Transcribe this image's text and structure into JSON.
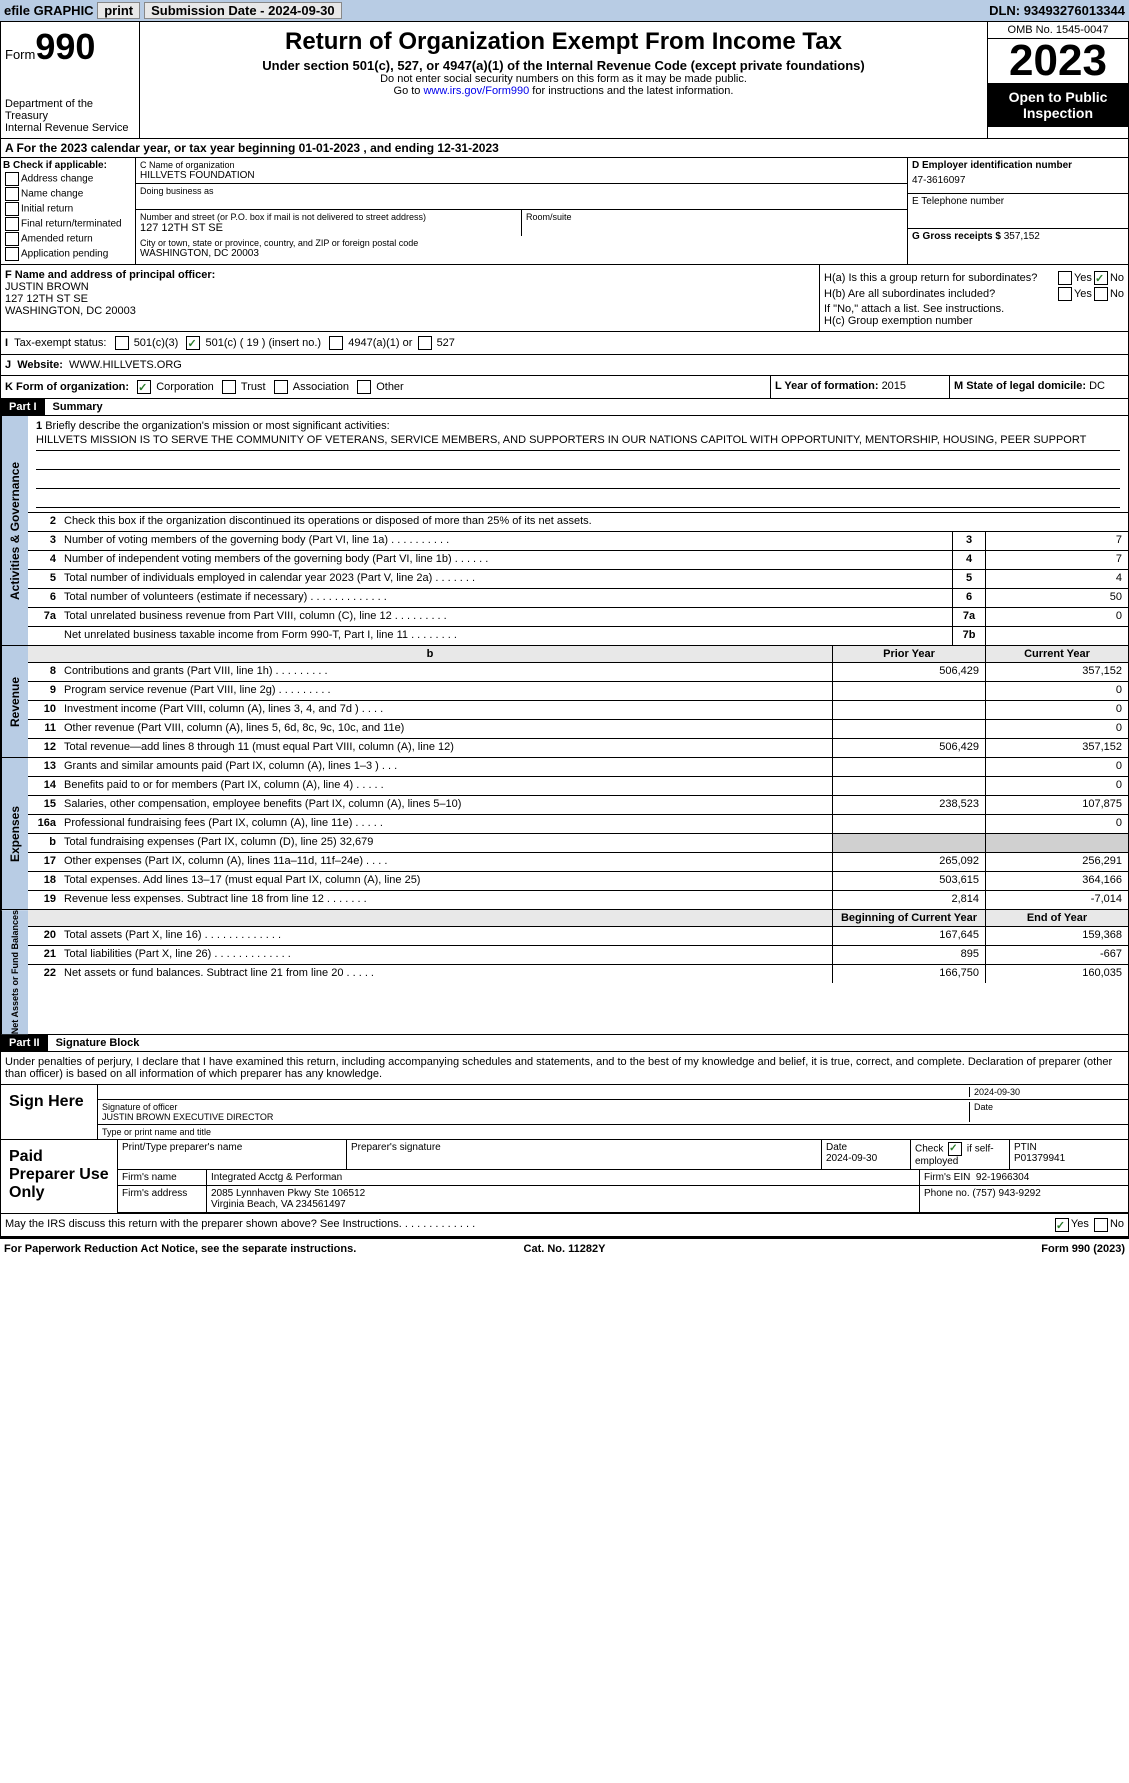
{
  "top": {
    "efile": "efile GRAPHIC",
    "print": "print",
    "subdate_lbl": "Submission Date - ",
    "subdate": "2024-09-30",
    "dln_lbl": "DLN: ",
    "dln": "93493276013344"
  },
  "hdr": {
    "form": "Form",
    "n990": "990",
    "title": "Return of Organization Exempt From Income Tax",
    "sub": "Under section 501(c), 527, or 4947(a)(1) of the Internal Revenue Code (except private foundations)",
    "note1": "Do not enter social security numbers on this form as it may be made public.",
    "note2": "Go to ",
    "link": "www.irs.gov/Form990",
    "note3": " for instructions and the latest information.",
    "dept": "Department of the Treasury",
    "irs": "Internal Revenue Service",
    "omb": "OMB No. 1545-0047",
    "year": "2023",
    "open": "Open to Public Inspection"
  },
  "a": {
    "lbl": "A For the 2023 calendar year, or tax year beginning ",
    "beg": "01-01-2023",
    "mid": " , and ending ",
    "end": "12-31-2023"
  },
  "b": {
    "lbl": "B Check if applicable:",
    "opts": [
      "Address change",
      "Name change",
      "Initial return",
      "Final return/terminated",
      "Amended return",
      "Application pending"
    ]
  },
  "c": {
    "lbl": "C Name of organization",
    "name": "HILLVETS FOUNDATION",
    "dba_lbl": "Doing business as",
    "addr_lbl": "Number and street (or P.O. box if mail is not delivered to street address)",
    "addr": "127 12TH ST SE",
    "room_lbl": "Room/suite",
    "city_lbl": "City or town, state or province, country, and ZIP or foreign postal code",
    "city": "WASHINGTON, DC  20003"
  },
  "d": {
    "lbl": "D Employer identification number",
    "ein": "47-3616097"
  },
  "e": {
    "lbl": "E Telephone number"
  },
  "g": {
    "lbl": "G Gross receipts $ ",
    "val": "357,152"
  },
  "f": {
    "lbl": "F  Name and address of principal officer:",
    "name": "JUSTIN BROWN",
    "addr1": "127 12TH ST SE",
    "addr2": "WASHINGTON, DC  20003"
  },
  "h": {
    "a_lbl": "H(a)  Is this a group return for subordinates?",
    "b_lbl": "H(b)  Are all subordinates included?",
    "note": "If \"No,\" attach a list. See instructions.",
    "c_lbl": "H(c)  Group exemption number",
    "yes": "Yes",
    "no": "No"
  },
  "i": {
    "lbl": "Tax-exempt status:",
    "o1": "501(c)(3)",
    "o2": "501(c) ( 19 ) (insert no.)",
    "o3": "4947(a)(1) or",
    "o4": "527"
  },
  "j": {
    "lbl": "Website:",
    "val": "WWW.HILLVETS.ORG"
  },
  "k": {
    "lbl": "K Form of organization:",
    "o1": "Corporation",
    "o2": "Trust",
    "o3": "Association",
    "o4": "Other"
  },
  "l": {
    "lbl": "L Year of formation: ",
    "val": "2015"
  },
  "m": {
    "lbl": "M State of legal domicile: ",
    "val": "DC"
  },
  "p1": {
    "hdr": "Part I",
    "title": "Summary"
  },
  "mission": {
    "lbl": "Briefly describe the organization's mission or most significant activities:",
    "txt": "HILLVETS MISSION IS TO SERVE THE COMMUNITY OF VETERANS, SERVICE MEMBERS, AND SUPPORTERS IN OUR NATIONS CAPITOL WITH OPPORTUNITY, MENTORSHIP, HOUSING, PEER SUPPORT"
  },
  "l2": "Check this box      if the organization discontinued its operations or disposed of more than 25% of its net assets.",
  "lines_gov": [
    {
      "n": "3",
      "d": "Number of voting members of the governing body (Part VI, line 1a)   .    .    .    .    .    .    .    .    .    .",
      "b": "3",
      "v": "7"
    },
    {
      "n": "4",
      "d": "Number of independent voting members of the governing body (Part VI, line 1b)   .    .    .    .    .    .",
      "b": "4",
      "v": "7"
    },
    {
      "n": "5",
      "d": "Total number of individuals employed in calendar year 2023 (Part V, line 2a)   .    .    .    .    .    .    .",
      "b": "5",
      "v": "4"
    },
    {
      "n": "6",
      "d": "Total number of volunteers (estimate if necessary)    .    .    .    .    .    .    .    .    .    .    .    .    .",
      "b": "6",
      "v": "50"
    },
    {
      "n": "7a",
      "d": "Total unrelated business revenue from Part VIII, column (C), line 12   .    .    .    .    .    .    .    .    .",
      "b": "7a",
      "v": "0"
    },
    {
      "n": "",
      "d": "Net unrelated business taxable income from Form 990-T, Part I, line 11   .    .    .    .    .    .    .    .",
      "b": "7b",
      "v": ""
    }
  ],
  "col_hdr": {
    "py": "Prior Year",
    "cy": "Current Year"
  },
  "lines_rev": [
    {
      "n": "8",
      "d": "Contributions and grants (Part VIII, line 1h)    .    .    .    .    .    .    .    .    .",
      "py": "506,429",
      "cy": "357,152"
    },
    {
      "n": "9",
      "d": "Program service revenue (Part VIII, line 2g)   .    .    .    .    .    .    .    .    .",
      "py": "",
      "cy": "0"
    },
    {
      "n": "10",
      "d": "Investment income (Part VIII, column (A), lines 3, 4, and 7d )    .    .    .    .",
      "py": "",
      "cy": "0"
    },
    {
      "n": "11",
      "d": "Other revenue (Part VIII, column (A), lines 5, 6d, 8c, 9c, 10c, and 11e)",
      "py": "",
      "cy": "0"
    },
    {
      "n": "12",
      "d": "Total revenue—add lines 8 through 11 (must equal Part VIII, column (A), line 12)",
      "py": "506,429",
      "cy": "357,152"
    }
  ],
  "lines_exp": [
    {
      "n": "13",
      "d": "Grants and similar amounts paid (Part IX, column (A), lines 1–3 )   .    .    .",
      "py": "",
      "cy": "0"
    },
    {
      "n": "14",
      "d": "Benefits paid to or for members (Part IX, column (A), line 4)   .    .    .    .    .",
      "py": "",
      "cy": "0"
    },
    {
      "n": "15",
      "d": "Salaries, other compensation, employee benefits (Part IX, column (A), lines 5–10)",
      "py": "238,523",
      "cy": "107,875"
    },
    {
      "n": "16a",
      "d": "Professional fundraising fees (Part IX, column (A), line 11e)    .    .    .    .    .",
      "py": "",
      "cy": "0"
    },
    {
      "n": "b",
      "d": "Total fundraising expenses (Part IX, column (D), line 25) 32,679",
      "py": "SHADE",
      "cy": "SHADE"
    },
    {
      "n": "17",
      "d": "Other expenses (Part IX, column (A), lines 11a–11d, 11f–24e)    .    .    .    .",
      "py": "265,092",
      "cy": "256,291"
    },
    {
      "n": "18",
      "d": "Total expenses. Add lines 13–17 (must equal Part IX, column (A), line 25)",
      "py": "503,615",
      "cy": "364,166"
    },
    {
      "n": "19",
      "d": "Revenue less expenses. Subtract line 18 from line 12   .    .    .    .    .    .    .",
      "py": "2,814",
      "cy": "-7,014"
    }
  ],
  "col_hdr2": {
    "py": "Beginning of Current Year",
    "cy": "End of Year"
  },
  "lines_net": [
    {
      "n": "20",
      "d": "Total assets (Part X, line 16)    .    .    .    .    .    .    .    .    .    .    .    .    .",
      "py": "167,645",
      "cy": "159,368"
    },
    {
      "n": "21",
      "d": "Total liabilities (Part X, line 26)   .    .    .    .    .    .    .    .    .    .    .    .    .",
      "py": "895",
      "cy": "-667"
    },
    {
      "n": "22",
      "d": "Net assets or fund balances. Subtract line 21 from line 20    .    .    .    .    .",
      "py": "166,750",
      "cy": "160,035"
    }
  ],
  "vtabs": {
    "gov": "Activities & Governance",
    "rev": "Revenue",
    "exp": "Expenses",
    "net": "Net Assets or Fund Balances"
  },
  "p2": {
    "hdr": "Part II",
    "title": "Signature Block"
  },
  "sig": {
    "decl": "Under penalties of perjury, I declare that I have examined this return, including accompanying schedules and statements, and to the best of my knowledge and belief, it is true, correct, and complete. Declaration of preparer (other than officer) is based on all information of which preparer has any knowledge.",
    "sign_here": "Sign Here",
    "sig_lbl": "Signature of officer",
    "date_lbl": "Date",
    "date": "2024-09-30",
    "name": "JUSTIN BROWN  EXECUTIVE DIRECTOR",
    "name_lbl": "Type or print name and title"
  },
  "paid": {
    "title": "Paid Preparer Use Only",
    "prep_name_lbl": "Print/Type preparer's name",
    "prep_sig_lbl": "Preparer's signature",
    "date_lbl": "Date",
    "date": "2024-09-30",
    "check_lbl": "Check",
    "self_lbl": "if self-employed",
    "ptin_lbl": "PTIN",
    "ptin": "P01379941",
    "firm_lbl": "Firm's name",
    "firm": "Integrated Acctg & Performan",
    "ein_lbl": "Firm's EIN",
    "ein": "92-1966304",
    "addr_lbl": "Firm's address",
    "addr1": "2085 Lynnhaven Pkwy Ste 106512",
    "addr2": "Virginia Beach, VA  234561497",
    "phone_lbl": "Phone no.",
    "phone": "(757) 943-9292"
  },
  "irs_discuss": "May the IRS discuss this return with the preparer shown above? See Instructions.   .    .    .    .    .    .    .    .    .    .    .    .",
  "footer": {
    "l": "For Paperwork Reduction Act Notice, see the separate instructions.",
    "c": "Cat. No. 11282Y",
    "r": "Form 990 (2023)"
  }
}
